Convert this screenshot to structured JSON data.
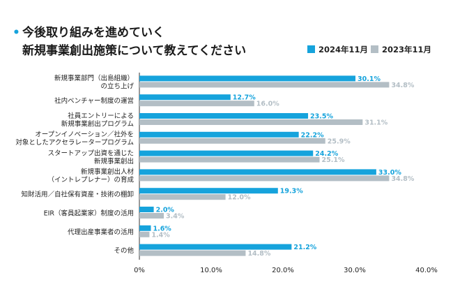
{
  "chart_data": {
    "type": "bar",
    "orientation": "horizontal",
    "title_lines": [
      "今後取り組みを進めていく",
      "新規事業創出施策について教えてください"
    ],
    "categories": [
      [
        "新規事業部門（出島組織）",
        "の立ち上げ"
      ],
      [
        "社内ベンチャー制度の運営"
      ],
      [
        "社員エントリーによる",
        "新規事業創出プログラム"
      ],
      [
        "オープンイノベーション／社外を",
        "対象としたアクセラレータープログラム"
      ],
      [
        "スタートアップ出資を通じた",
        "新規事業創出"
      ],
      [
        "新規事業創出人材",
        "（イントレプレナー）の育成"
      ],
      [
        "知財活用／自社保有資産・技術の棚卸"
      ],
      [
        "EIR（客員起業家）制度の活用"
      ],
      [
        "代理出産事業者の活用"
      ],
      [
        "その他"
      ]
    ],
    "series": [
      {
        "name": "2024年11月",
        "color": "#16a3dc",
        "values": [
          30.1,
          12.7,
          23.5,
          22.2,
          24.2,
          33.0,
          19.3,
          2.0,
          1.6,
          21.2
        ]
      },
      {
        "name": "2023年11月",
        "color": "#b3bec5",
        "values": [
          34.8,
          16.0,
          31.1,
          25.9,
          25.1,
          34.8,
          12.0,
          3.4,
          1.4,
          14.8
        ]
      }
    ],
    "value_suffix": "%",
    "xlim": [
      0,
      40
    ],
    "xticks": [
      0,
      10,
      20,
      30,
      40
    ],
    "xtick_labels": [
      "0%",
      "10.0%",
      "20.0%",
      "30.0%",
      "40.0%"
    ],
    "grid": false,
    "legend_position": "top-right"
  }
}
